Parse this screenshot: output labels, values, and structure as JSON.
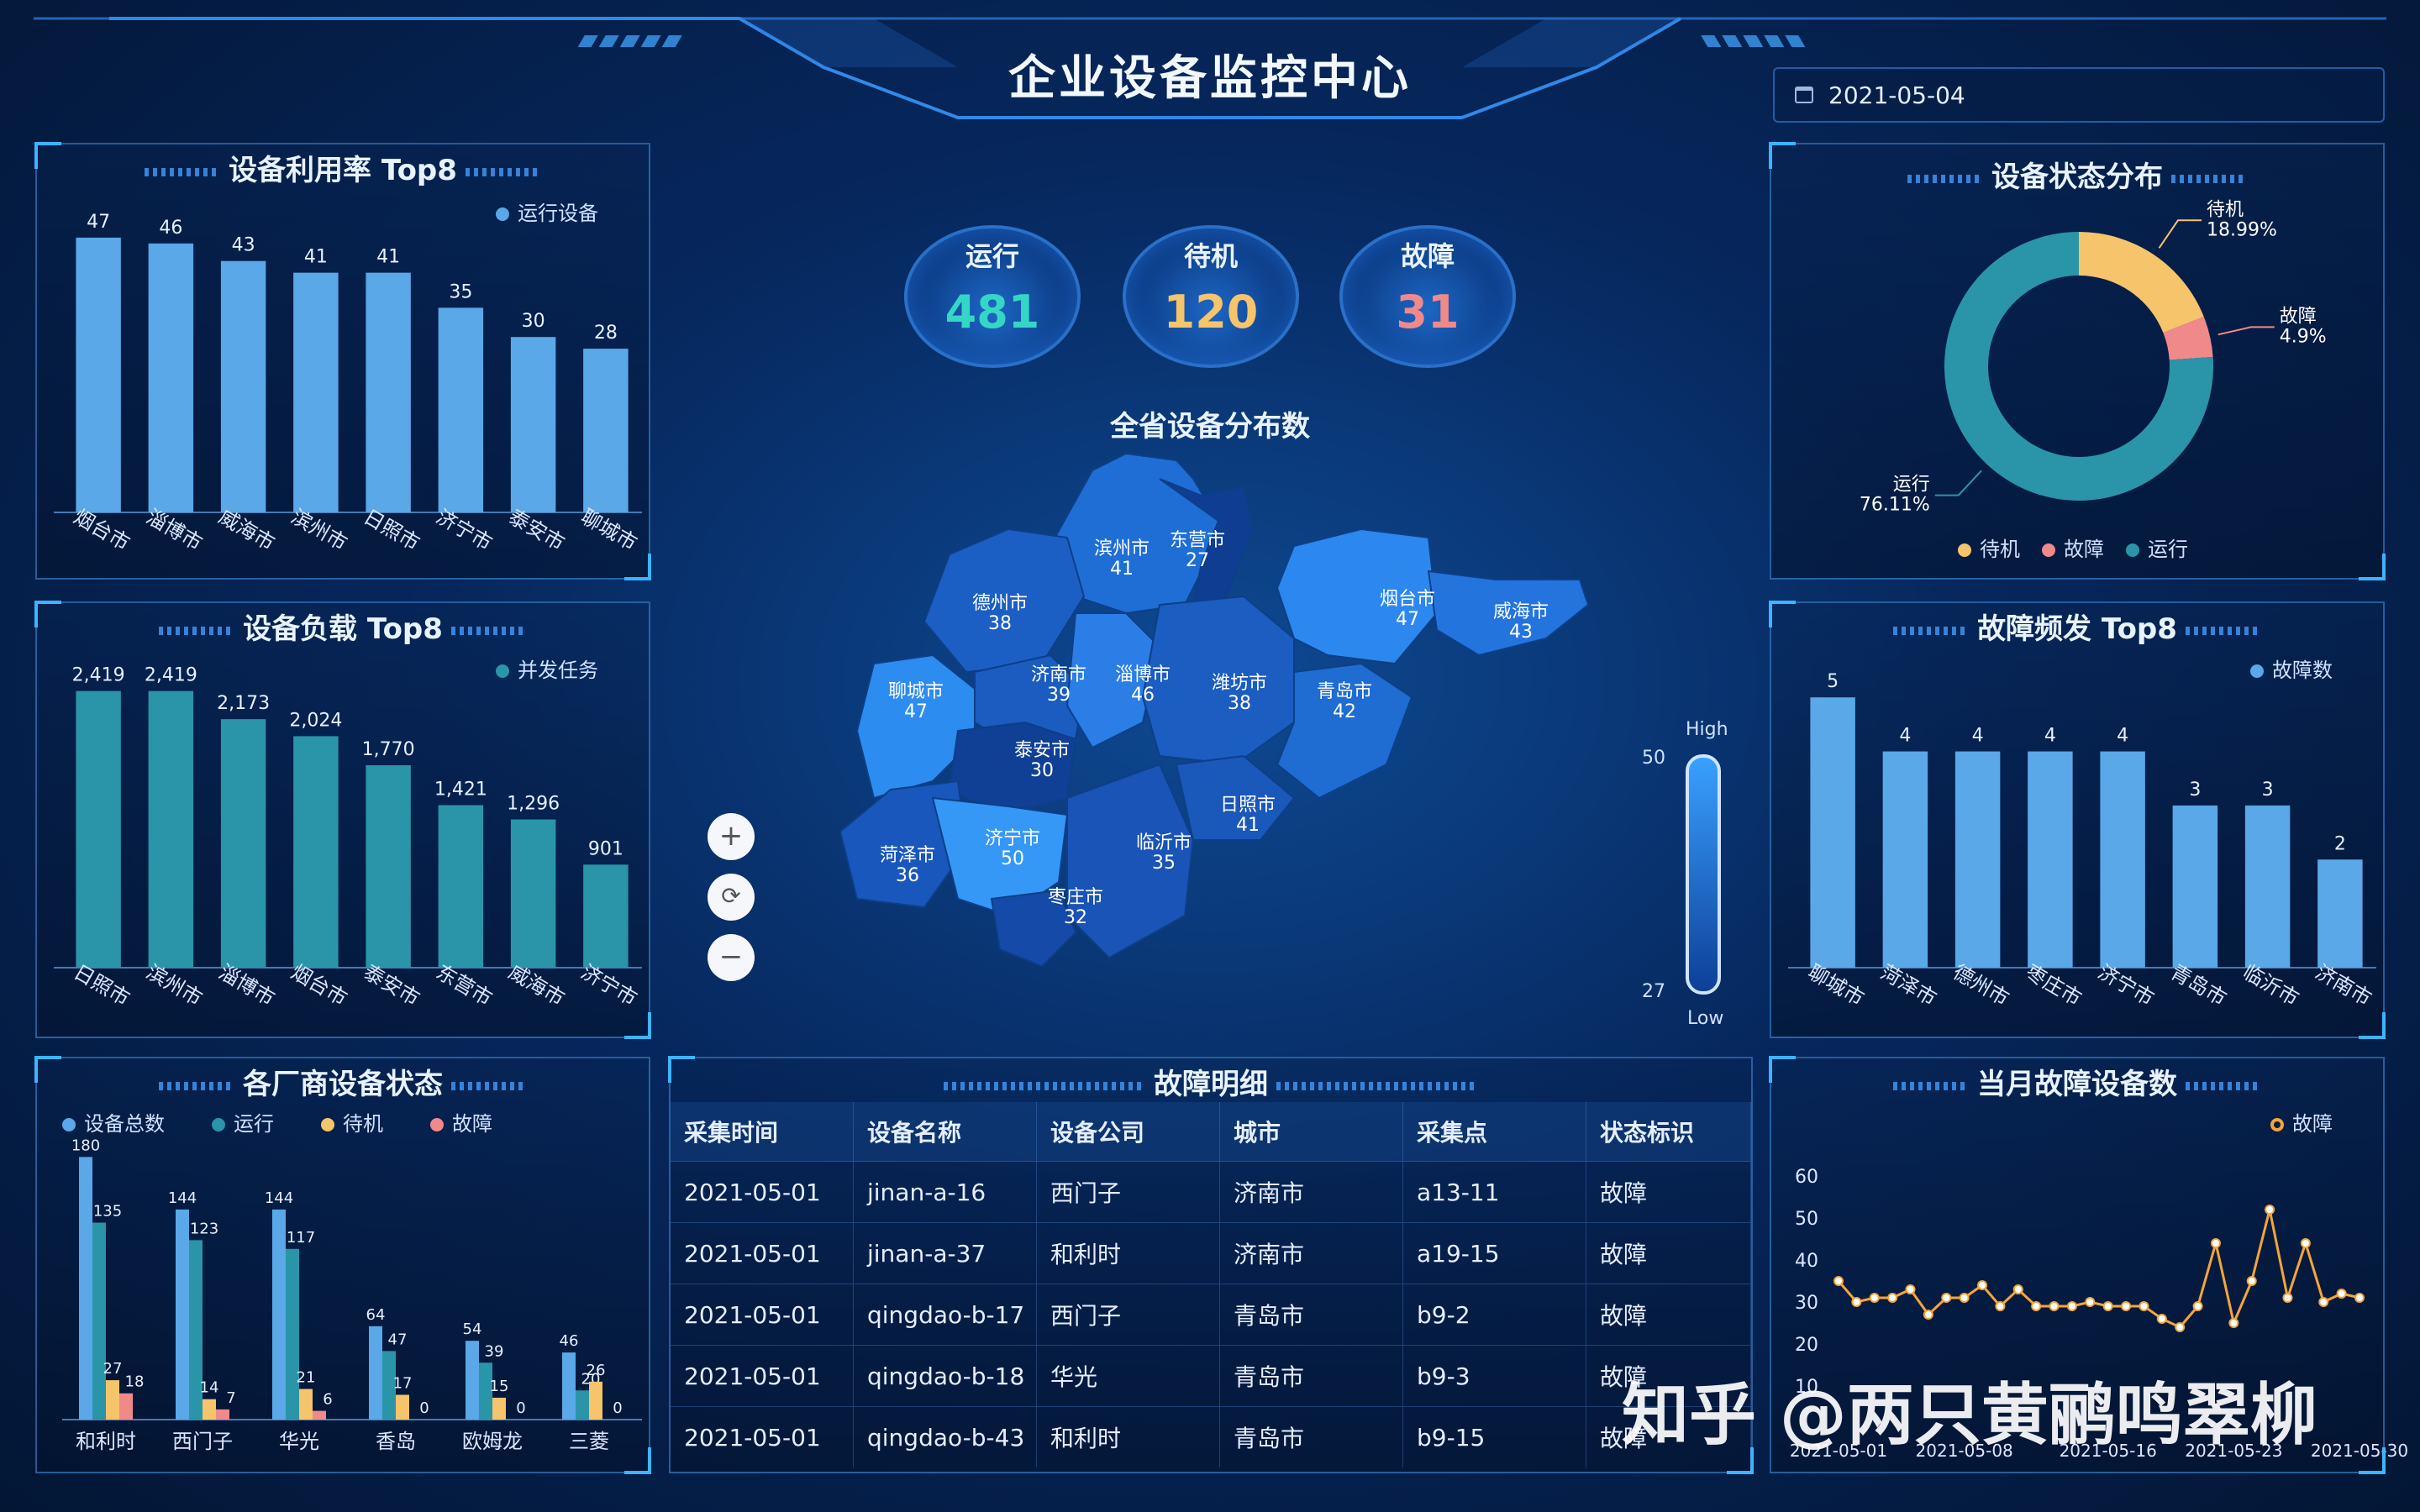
{
  "header": {
    "title": "企业设备监控中心",
    "date": "2021-05-04"
  },
  "stats": [
    {
      "label": "运行",
      "value": "481",
      "color": "#36d6c6"
    },
    {
      "label": "待机",
      "value": "120",
      "color": "#f6c46a"
    },
    {
      "label": "故障",
      "value": "31",
      "color": "#f08a8a"
    }
  ],
  "utilization": {
    "title": "设备利用率 Top8",
    "legend": "运行设备",
    "chart_data": {
      "type": "bar",
      "categories": [
        "烟台市",
        "淄博市",
        "威海市",
        "滨州市",
        "日照市",
        "济宁市",
        "泰安市",
        "聊城市"
      ],
      "values": [
        47,
        46,
        43,
        41,
        41,
        35,
        30,
        28
      ],
      "ylim": [
        0,
        50
      ]
    }
  },
  "load": {
    "title": "设备负载 Top8",
    "legend": "并发任务",
    "chart_data": {
      "type": "bar",
      "categories": [
        "日照市",
        "滨州市",
        "淄博市",
        "烟台市",
        "泰安市",
        "东营市",
        "威海市",
        "济宁市"
      ],
      "values": [
        2419,
        2419,
        2173,
        2024,
        1770,
        1421,
        1296,
        901
      ],
      "labels": [
        "2,419",
        "2,419",
        "2,173",
        "2,024",
        "1,770",
        "1,421",
        "1,296",
        "901"
      ],
      "ylim": [
        0,
        2600
      ]
    }
  },
  "vendor": {
    "title": "各厂商设备状态",
    "legend": [
      "设备总数",
      "运行",
      "待机",
      "故障"
    ],
    "chart_data": {
      "type": "bar",
      "categories": [
        "和利时",
        "西门子",
        "华光",
        "香岛",
        "欧姆龙",
        "三菱"
      ],
      "series": [
        {
          "name": "设备总数",
          "values": [
            180,
            144,
            144,
            64,
            54,
            46
          ]
        },
        {
          "name": "运行",
          "values": [
            135,
            123,
            117,
            47,
            39,
            20
          ]
        },
        {
          "name": "待机",
          "values": [
            27,
            14,
            21,
            17,
            15,
            26
          ]
        },
        {
          "name": "故障",
          "values": [
            18,
            7,
            6,
            0,
            0,
            0
          ]
        }
      ],
      "ylim": [
        0,
        190
      ]
    }
  },
  "map": {
    "title": "全省设备分布数",
    "zoom_in": "+",
    "refresh": "⟳",
    "zoom_out": "−",
    "scale_high": "High",
    "scale_low": "Low",
    "scale_max": "50",
    "scale_min": "27",
    "cities": [
      {
        "name": "滨州市",
        "value": "41"
      },
      {
        "name": "东营市",
        "value": "27"
      },
      {
        "name": "德州市",
        "value": "38"
      },
      {
        "name": "烟台市",
        "value": "47"
      },
      {
        "name": "威海市",
        "value": "43"
      },
      {
        "name": "聊城市",
        "value": "47"
      },
      {
        "name": "济南市",
        "value": "39"
      },
      {
        "name": "淄博市",
        "value": "46"
      },
      {
        "name": "潍坊市",
        "value": "38"
      },
      {
        "name": "青岛市",
        "value": "42"
      },
      {
        "name": "泰安市",
        "value": "30"
      },
      {
        "name": "日照市",
        "value": "41"
      },
      {
        "name": "菏泽市",
        "value": "36"
      },
      {
        "name": "济宁市",
        "value": "50"
      },
      {
        "name": "临沂市",
        "value": "35"
      },
      {
        "name": "枣庄市",
        "value": "32"
      }
    ]
  },
  "status": {
    "title": "设备状态分布",
    "legend": [
      "待机",
      "故障",
      "运行"
    ],
    "chart_data": {
      "type": "pie",
      "labels": [
        "待机",
        "故障",
        "运行"
      ],
      "values": [
        18.99,
        4.9,
        76.11
      ],
      "display": [
        "18.99%",
        "4.9%",
        "76.11%"
      ]
    }
  },
  "fault_top": {
    "title": "故障频发 Top8",
    "legend": "故障数",
    "chart_data": {
      "type": "bar",
      "categories": [
        "聊城市",
        "菏泽市",
        "德州市",
        "枣庄市",
        "济宁市",
        "青岛市",
        "临沂市",
        "济南市"
      ],
      "values": [
        5,
        4,
        4,
        4,
        4,
        3,
        3,
        2
      ],
      "ylim": [
        0,
        5.5
      ]
    }
  },
  "table": {
    "title": "故障明细",
    "headers": [
      "采集时间",
      "设备名称",
      "设备公司",
      "城市",
      "采集点",
      "状态标识"
    ],
    "rows": [
      [
        "2021-05-01",
        "jinan-a-16",
        "西门子",
        "济南市",
        "a13-11",
        "故障"
      ],
      [
        "2021-05-01",
        "jinan-a-37",
        "和利时",
        "济南市",
        "a19-15",
        "故障"
      ],
      [
        "2021-05-01",
        "qingdao-b-17",
        "西门子",
        "青岛市",
        "b9-2",
        "故障"
      ],
      [
        "2021-05-01",
        "qingdao-b-18",
        "华光",
        "青岛市",
        "b9-3",
        "故障"
      ],
      [
        "2021-05-01",
        "qingdao-b-43",
        "和利时",
        "青岛市",
        "b9-15",
        "故障"
      ]
    ]
  },
  "monthly": {
    "title": "当月故障设备数",
    "legend": "故障",
    "chart_data": {
      "type": "line",
      "x": [
        "2021-05-01",
        "2021-05-02",
        "2021-05-03",
        "2021-05-04",
        "2021-05-05",
        "2021-05-06",
        "2021-05-07",
        "2021-05-08",
        "2021-05-09",
        "2021-05-10",
        "2021-05-11",
        "2021-05-12",
        "2021-05-13",
        "2021-05-14",
        "2021-05-15",
        "2021-05-16",
        "2021-05-17",
        "2021-05-18",
        "2021-05-19",
        "2021-05-20",
        "2021-05-21",
        "2021-05-22",
        "2021-05-23",
        "2021-05-24",
        "2021-05-25",
        "2021-05-26",
        "2021-05-27",
        "2021-05-28",
        "2021-05-29",
        "2021-05-30"
      ],
      "values": [
        35,
        30,
        31,
        31,
        33,
        27,
        31,
        31,
        34,
        29,
        33,
        29,
        29,
        29,
        30,
        29,
        29,
        29,
        26,
        24,
        29,
        44,
        25,
        35,
        52,
        31,
        44,
        30,
        32,
        31
      ],
      "x_ticks": [
        "2021-05-01",
        "2021-05-08",
        "2021-05-16",
        "2021-05-23",
        "2021-05-30"
      ],
      "y_ticks": [
        "10",
        "20",
        "30",
        "40",
        "50",
        "60"
      ],
      "ylim": [
        0,
        60
      ]
    }
  },
  "watermark": "知乎 @两只黄鹂鸣翠柳"
}
